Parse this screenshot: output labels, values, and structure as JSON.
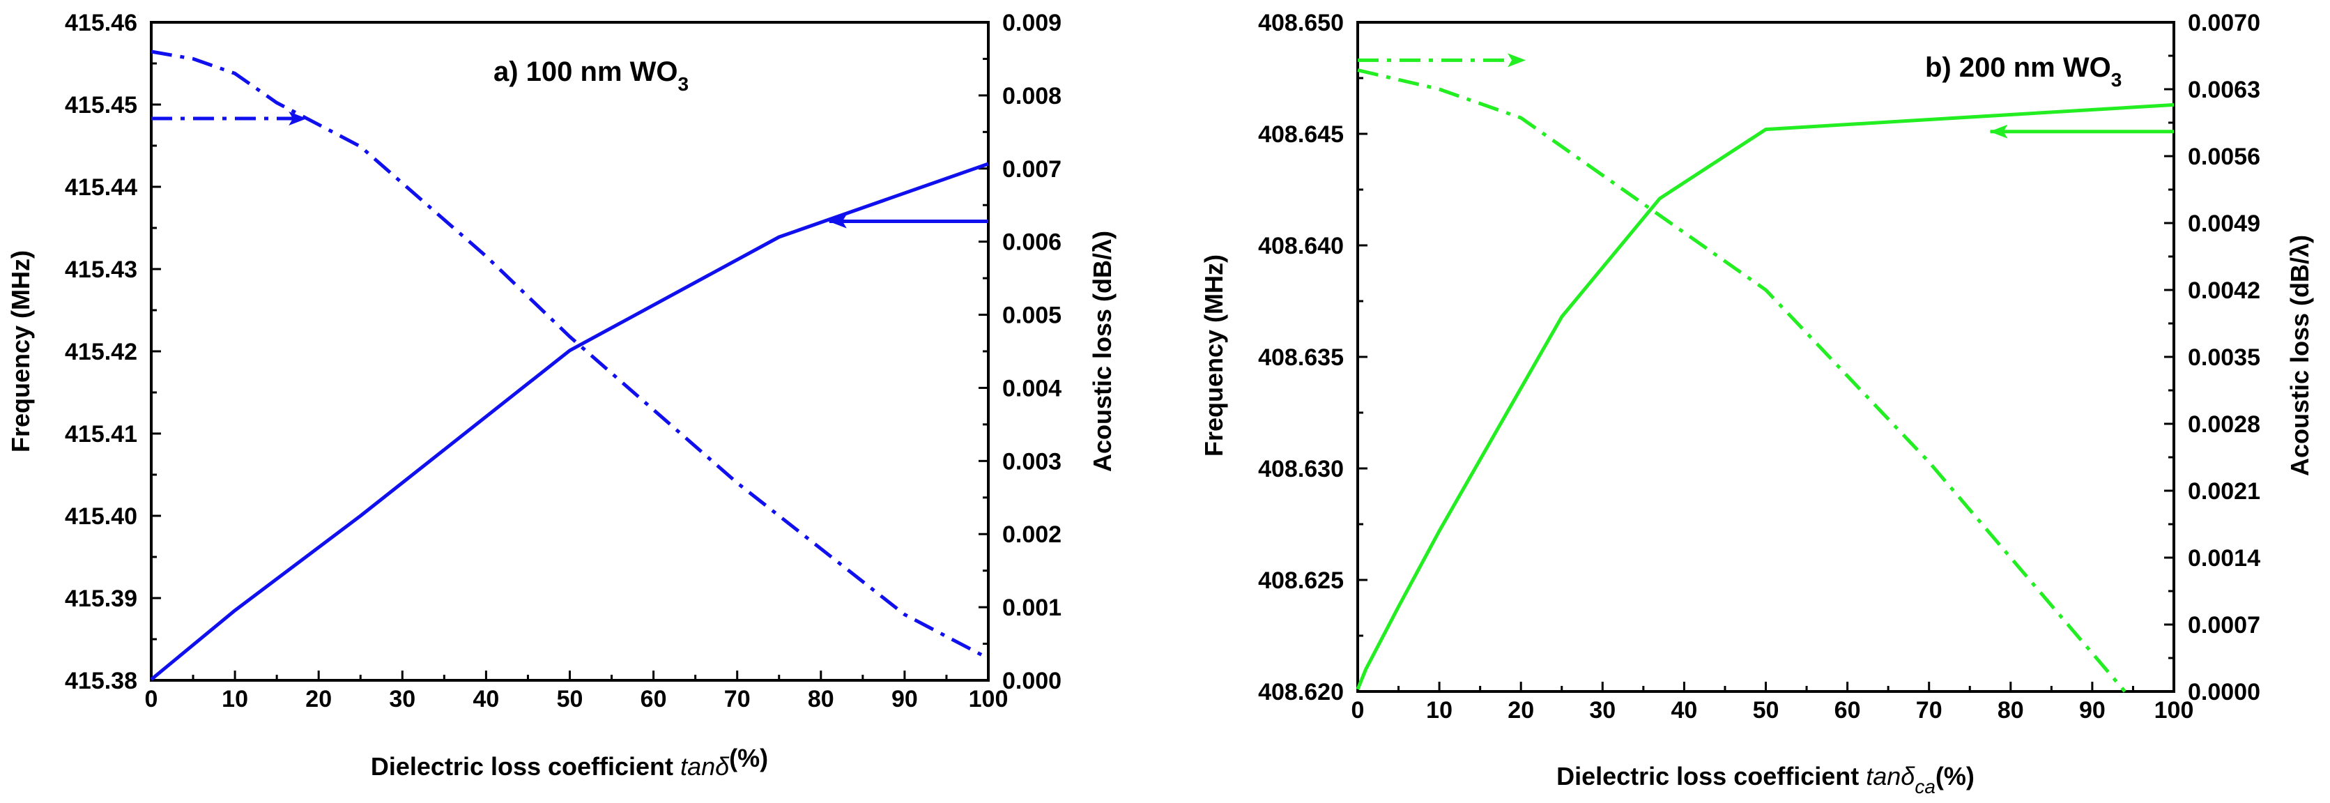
{
  "chart_data": [
    {
      "type": "line",
      "title": "a) 100 nm WO",
      "title_sub": "3",
      "color": "#1010ee",
      "xlabel": "Dielectric loss coefficient",
      "xlabel_symbol": "tanδ",
      "xlabel_symbol_sub": "",
      "xlabel_unit": "(%)",
      "ylabel_left": "Frequency (MHz)",
      "ylabel_right": "Acoustic loss (dB/λ)",
      "xlim": [
        0,
        100
      ],
      "ylim_left": [
        415.38,
        415.46
      ],
      "ylim_right": [
        0.0,
        0.009
      ],
      "x_ticks": [
        "0",
        "10",
        "20",
        "30",
        "40",
        "50",
        "60",
        "70",
        "80",
        "90",
        "100"
      ],
      "y_left_ticks": [
        "415.38",
        "415.39",
        "415.40",
        "415.41",
        "415.42",
        "415.43",
        "415.44",
        "415.45",
        "415.46"
      ],
      "y_right_ticks": [
        "0.000",
        "0.001",
        "0.002",
        "0.003",
        "0.004",
        "0.005",
        "0.006",
        "0.007",
        "0.008",
        "0.009"
      ],
      "series": [
        {
          "name": "Frequency",
          "axis": "left",
          "style": "solid",
          "x": [
            0,
            10,
            25,
            50,
            75,
            100
          ],
          "y": [
            415.3801,
            415.3885,
            415.4,
            415.4201,
            415.4339,
            415.4428
          ]
        },
        {
          "name": "Acoustic loss",
          "axis": "right",
          "style": "dashdot",
          "x": [
            0,
            5,
            10,
            15,
            20,
            25,
            30,
            40,
            50,
            60,
            70,
            80,
            90,
            100
          ],
          "y": [
            0.0086,
            0.0085,
            0.0083,
            0.0079,
            0.0076,
            0.0073,
            0.0068,
            0.0058,
            0.0047,
            0.0037,
            0.0027,
            0.0018,
            0.0009,
            0.0003
          ]
        }
      ],
      "arrows": [
        {
          "series": "Frequency",
          "direction": "left",
          "x_from": 100,
          "x_to": 81,
          "y": 415.4358,
          "axis": "left"
        },
        {
          "series": "Acoustic loss",
          "direction": "right",
          "x_from": 0,
          "x_to": 18.5,
          "y": 415.4483,
          "axis": "left"
        }
      ]
    },
    {
      "type": "line",
      "title": "b) 200 nm WO",
      "title_sub": "3",
      "color": "#22ee22",
      "xlabel": "Dielectric loss coefficient",
      "xlabel_symbol": "tanδ",
      "xlabel_symbol_sub": "ca",
      "xlabel_unit": "(%)",
      "ylabel_left": "Frequency (MHz)",
      "ylabel_right": "Acoustic loss (dB/λ)",
      "xlim": [
        0,
        100
      ],
      "ylim_left": [
        408.62,
        408.65
      ],
      "ylim_right": [
        0.0,
        0.007
      ],
      "x_ticks": [
        "0",
        "10",
        "20",
        "30",
        "40",
        "50",
        "60",
        "70",
        "80",
        "90",
        "100"
      ],
      "y_left_ticks": [
        "408.620",
        "408.625",
        "408.630",
        "408.635",
        "408.640",
        "408.645",
        "408.650"
      ],
      "y_right_ticks": [
        "0.0000",
        "0.0007",
        "0.0014",
        "0.0021",
        "0.0028",
        "0.0035",
        "0.0042",
        "0.0049",
        "0.0056",
        "0.0063",
        "0.0070"
      ],
      "series": [
        {
          "name": "Frequency",
          "axis": "left",
          "style": "solid",
          "x": [
            0,
            1,
            5,
            10,
            25,
            37,
            50,
            100
          ],
          "y": [
            408.6201,
            408.621,
            408.6238,
            408.6272,
            408.6368,
            408.6421,
            408.6452,
            408.6463
          ]
        },
        {
          "name": "Acoustic loss",
          "axis": "right",
          "style": "dashdot",
          "x": [
            0,
            10,
            20,
            30,
            40,
            50,
            60,
            70,
            80,
            90,
            94
          ],
          "y": [
            0.0065,
            0.0063,
            0.006,
            0.0054,
            0.0048,
            0.0042,
            0.0033,
            0.0024,
            0.0014,
            0.0004,
            0.0
          ]
        }
      ],
      "arrows": [
        {
          "series": "Frequency",
          "direction": "left",
          "x_from": 100,
          "x_to": 77.5,
          "y": 408.6451,
          "axis": "left"
        },
        {
          "series": "Acoustic loss",
          "direction": "right",
          "x_from": 0,
          "x_to": 20.5,
          "y": 408.6483,
          "axis": "left"
        }
      ]
    }
  ]
}
